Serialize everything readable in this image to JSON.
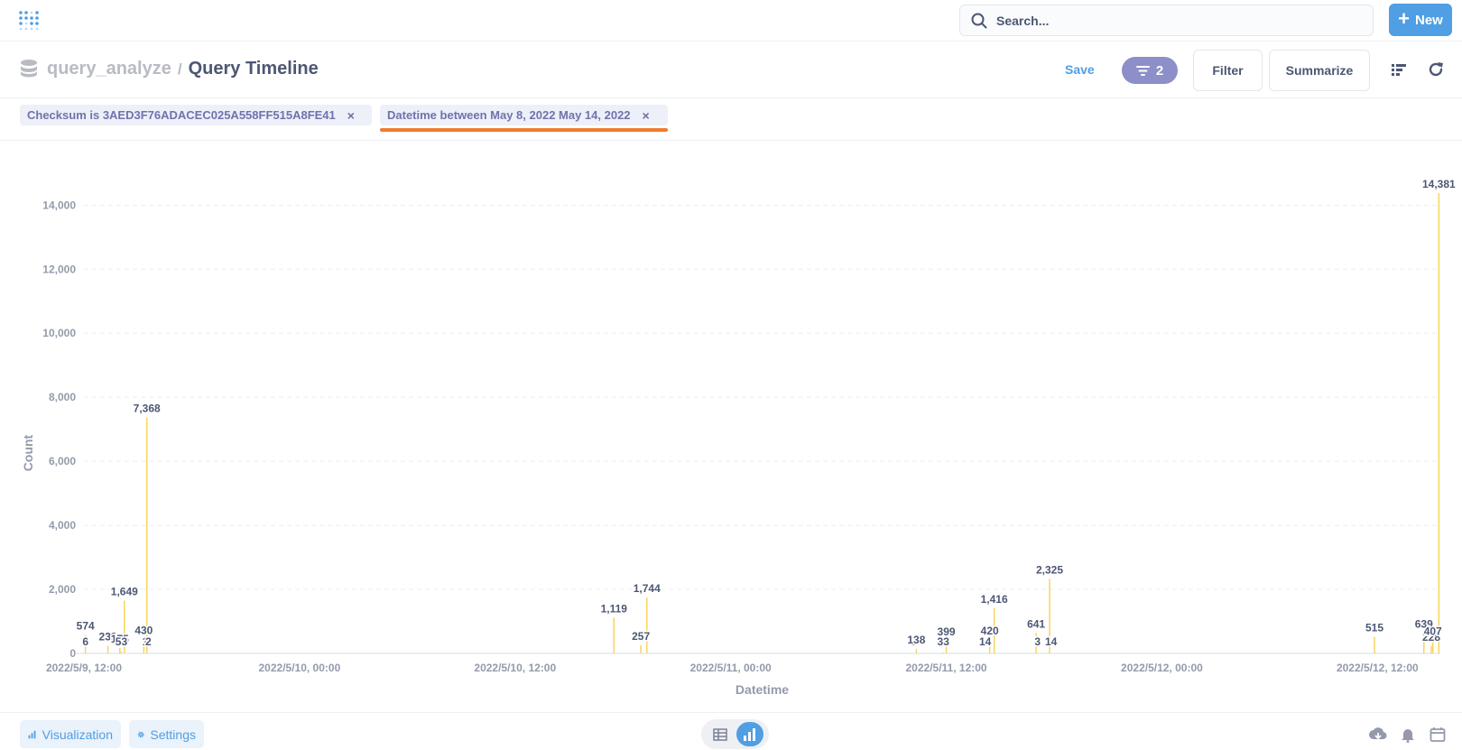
{
  "nav": {
    "search_placeholder": "Search...",
    "new_label": "New",
    "brand_color": "#509ee3"
  },
  "header": {
    "database": "query_analyze",
    "separator": "/",
    "title": "Query Timeline",
    "save_label": "Save",
    "filter_count": "2",
    "filter_label": "Filter",
    "summarize_label": "Summarize"
  },
  "filters": [
    {
      "label": "Checksum is 3AED3F76ADACEC025A558FF515A8FE41",
      "remove": "×"
    },
    {
      "label": "Datetime between May 8, 2022 May 14, 2022",
      "remove": "×"
    }
  ],
  "footer": {
    "visualization_label": "Visualization",
    "settings_label": "Settings"
  },
  "icons": [
    "metabase-logo-icon",
    "search-icon",
    "plus-icon",
    "database-icon",
    "filter-icon",
    "list-icon",
    "refresh-icon",
    "bar-chart-icon",
    "gear-icon",
    "table-icon",
    "download-icon",
    "bell-icon",
    "calendar-icon"
  ],
  "chart_data": {
    "type": "bar",
    "xlabel": "Datetime",
    "ylabel": "Count",
    "ylim": [
      0,
      14000
    ],
    "yticks": [
      0,
      2000,
      4000,
      6000,
      8000,
      10000,
      12000,
      14000
    ],
    "ytick_labels": [
      "0",
      "2,000",
      "4,000",
      "6,000",
      "8,000",
      "10,000",
      "12,000",
      "14,000"
    ],
    "xlim": [
      "2022-05-09T12:00",
      "2022-05-12T15:30"
    ],
    "xticks": [
      "2022-05-09T12:00",
      "2022-05-10T00:00",
      "2022-05-10T12:00",
      "2022-05-11T00:00",
      "2022-05-11T12:00",
      "2022-05-12T00:00",
      "2022-05-12T12:00"
    ],
    "xtick_labels": [
      "2022/5/9, 12:00",
      "2022/5/10, 00:00",
      "2022/5/10, 12:00",
      "2022/5/11, 00:00",
      "2022/5/11, 12:00",
      "2022/5/12, 00:00",
      "2022/5/12, 12:00"
    ],
    "grid": true,
    "bar_color": "#f9d45c",
    "points": [
      {
        "x": "2022-05-09T12:05",
        "y": 574,
        "label": "574"
      },
      {
        "x": "2022-05-09T12:05",
        "y": 6,
        "label": "6"
      },
      {
        "x": "2022-05-09T13:20",
        "y": 233,
        "label": "233"
      },
      {
        "x": "2022-05-09T14:00",
        "y": 175,
        "label": "175"
      },
      {
        "x": "2022-05-09T14:05",
        "y": 53,
        "label": "53"
      },
      {
        "x": "2022-05-09T14:15",
        "y": 1649,
        "label": "1,649"
      },
      {
        "x": "2022-05-09T15:20",
        "y": 430,
        "label": "430"
      },
      {
        "x": "2022-05-09T15:25",
        "y": 1,
        "label": "1"
      },
      {
        "x": "2022-05-09T15:30",
        "y": 7368,
        "label": "7,368"
      },
      {
        "x": "2022-05-09T15:35",
        "y": 2,
        "label": "2"
      },
      {
        "x": "2022-05-10T17:30",
        "y": 1119,
        "label": "1,119"
      },
      {
        "x": "2022-05-10T19:00",
        "y": 257,
        "label": "257"
      },
      {
        "x": "2022-05-10T19:20",
        "y": 1744,
        "label": "1,744"
      },
      {
        "x": "2022-05-11T10:10",
        "y": 3,
        "label": "3"
      },
      {
        "x": "2022-05-11T10:20",
        "y": 138,
        "label": "138"
      },
      {
        "x": "2022-05-11T11:50",
        "y": 33,
        "label": "33"
      },
      {
        "x": "2022-05-11T12:00",
        "y": 399,
        "label": "399"
      },
      {
        "x": "2022-05-11T14:10",
        "y": 14,
        "label": "14"
      },
      {
        "x": "2022-05-11T14:25",
        "y": 420,
        "label": "420"
      },
      {
        "x": "2022-05-11T14:40",
        "y": 1416,
        "label": "1,416"
      },
      {
        "x": "2022-05-11T17:00",
        "y": 641,
        "label": "641"
      },
      {
        "x": "2022-05-11T17:05",
        "y": 3,
        "label": "3"
      },
      {
        "x": "2022-05-11T17:45",
        "y": 2325,
        "label": "2,325"
      },
      {
        "x": "2022-05-11T17:50",
        "y": 14,
        "label": "14"
      },
      {
        "x": "2022-05-12T11:50",
        "y": 515,
        "label": "515"
      },
      {
        "x": "2022-05-12T14:35",
        "y": 639,
        "label": "639"
      },
      {
        "x": "2022-05-12T15:00",
        "y": 228,
        "label": "228"
      },
      {
        "x": "2022-05-12T15:05",
        "y": 407,
        "label": "407"
      },
      {
        "x": "2022-05-12T15:25",
        "y": 14381,
        "label": "14,381"
      }
    ]
  }
}
